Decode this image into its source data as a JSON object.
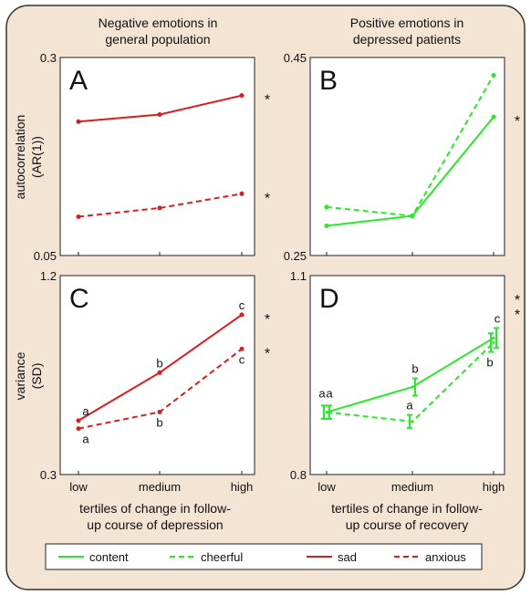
{
  "figure": {
    "bg_color": "#f3e4d3",
    "border_color": "#333333",
    "col_titles": [
      [
        "Negative emotions in",
        "general population"
      ],
      [
        "Positive emotions in",
        "depressed patients"
      ]
    ],
    "ylabel_top": [
      "autocorrelation",
      "(AR(1))"
    ],
    "ylabel_bottom": [
      "variance",
      "(SD)"
    ],
    "xlabel_left": [
      "tertiles of change in follow-",
      "up course of depression"
    ],
    "xlabel_right": [
      "tertiles of change in follow-",
      "up course of recovery"
    ],
    "legend": [
      {
        "label": "content",
        "color": "#22ee22",
        "dash": false
      },
      {
        "label": "cheerful",
        "color": "#22ee22",
        "dash": true
      },
      {
        "label": "sad",
        "color": "#e01b1b",
        "dash": false
      },
      {
        "label": "anxious",
        "color": "#e01b1b",
        "dash": true
      }
    ]
  },
  "chart_data": [
    {
      "panel": "A",
      "type": "line",
      "categories": [
        "low",
        "medium",
        "high"
      ],
      "ylim": [
        0.05,
        0.3
      ],
      "ytick_labels": [
        "0.05",
        "0.3"
      ],
      "series": [
        {
          "name": "sad",
          "color": "#e01b1b",
          "dash": false,
          "values": [
            0.219,
            0.228,
            0.252
          ]
        },
        {
          "name": "anxious",
          "color": "#e01b1b",
          "dash": true,
          "values": [
            0.099,
            0.11,
            0.128
          ]
        }
      ],
      "significance": [
        "*",
        "*"
      ]
    },
    {
      "panel": "B",
      "type": "line",
      "categories": [
        "low",
        "medium",
        "high"
      ],
      "ylim": [
        0.25,
        0.45
      ],
      "ytick_labels": [
        "0.25",
        "0.45"
      ],
      "series": [
        {
          "name": "content",
          "color": "#22ee22",
          "dash": false,
          "values": [
            0.28,
            0.29,
            0.39
          ]
        },
        {
          "name": "cheerful",
          "color": "#22ee22",
          "dash": true,
          "values": [
            0.299,
            0.29,
            0.432
          ]
        }
      ],
      "significance": [
        "*"
      ]
    },
    {
      "panel": "C",
      "type": "line",
      "categories": [
        "low",
        "medium",
        "high"
      ],
      "ylim": [
        0.3,
        1.2
      ],
      "ytick_labels": [
        "0.3",
        "1.2"
      ],
      "series": [
        {
          "name": "sad",
          "color": "#e01b1b",
          "dash": false,
          "values": [
            0.544,
            0.761,
            1.023
          ],
          "letters": [
            "a",
            "b",
            "c"
          ]
        },
        {
          "name": "anxious",
          "color": "#e01b1b",
          "dash": true,
          "values": [
            0.508,
            0.583,
            0.868
          ],
          "letters": [
            "a",
            "b",
            "c"
          ]
        }
      ],
      "significance": [
        "*",
        "*"
      ]
    },
    {
      "panel": "D",
      "type": "line",
      "categories": [
        "low",
        "medium",
        "high"
      ],
      "ylim": [
        0.8,
        1.1
      ],
      "ytick_labels": [
        "0.8",
        "1.1"
      ],
      "series": [
        {
          "name": "content",
          "color": "#22ee22",
          "dash": false,
          "values": [
            0.894,
            0.932,
            1.006
          ],
          "err": [
            0.01,
            0.013,
            0.015
          ],
          "letters": [
            "a",
            "b",
            "c"
          ]
        },
        {
          "name": "cheerful",
          "color": "#22ee22",
          "dash": true,
          "values": [
            0.894,
            0.88,
            0.999
          ],
          "err": [
            0.01,
            0.01,
            0.014
          ],
          "letters": [
            "a",
            "a",
            "b"
          ]
        }
      ],
      "significance": [
        "*",
        "*"
      ]
    }
  ]
}
